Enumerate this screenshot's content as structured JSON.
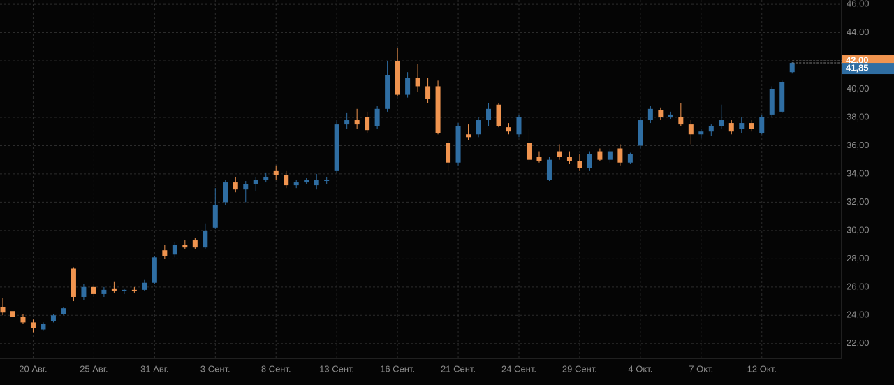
{
  "chart_data": {
    "type": "candlestick",
    "categories": [
      null,
      null,
      null,
      "20 Авг.",
      null,
      null,
      null,
      null,
      null,
      "25 Авг.",
      null,
      null,
      null,
      null,
      null,
      "31 Авг.",
      null,
      null,
      null,
      null,
      null,
      "3 Сент.",
      null,
      null,
      null,
      null,
      null,
      "8 Сент.",
      null,
      null,
      null,
      null,
      null,
      "13 Сент.",
      null,
      null,
      null,
      null,
      null,
      "16 Сент.",
      null,
      null,
      null,
      null,
      null,
      "21 Сент.",
      null,
      null,
      null,
      null,
      null,
      "24 Сент.",
      null,
      null,
      null,
      null,
      null,
      "29 Сент.",
      null,
      null,
      null,
      null,
      null,
      "4 Окт.",
      null,
      null,
      null,
      null,
      null,
      "7 Окт.",
      null,
      null,
      null,
      null,
      null,
      "12 Окт.",
      null,
      null,
      null
    ],
    "open": [
      24.6,
      24.3,
      23.9,
      23.5,
      23.0,
      23.6,
      24.1,
      27.3,
      25.3,
      26.0,
      25.5,
      25.9,
      25.7,
      25.8,
      25.8,
      26.3,
      28.6,
      28.3,
      29.0,
      29.3,
      28.8,
      30.2,
      32.0,
      33.4,
      32.9,
      33.3,
      33.6,
      34.2,
      33.9,
      33.2,
      33.4,
      33.2,
      33.5,
      34.2,
      37.5,
      37.8,
      38.0,
      37.4,
      38.6,
      42.0,
      39.6,
      40.8,
      40.2,
      40.2,
      36.2,
      34.8,
      36.8,
      36.8,
      37.8,
      38.9,
      37.3,
      36.8,
      36.2,
      35.2,
      33.6,
      35.6,
      35.2,
      34.9,
      34.4,
      35.6,
      35.0,
      35.8,
      34.8,
      36.0,
      37.8,
      38.5,
      38.0,
      38.0,
      37.5,
      36.8,
      37.0,
      37.4,
      37.6,
      37.2,
      37.6,
      36.9,
      38.2,
      38.4,
      41.2
    ],
    "high": [
      25.2,
      24.8,
      24.1,
      23.7,
      23.5,
      24.1,
      24.6,
      27.4,
      26.2,
      26.2,
      26.0,
      26.4,
      25.9,
      26.0,
      26.5,
      28.2,
      29.0,
      29.2,
      29.3,
      29.5,
      30.5,
      33.0,
      33.6,
      33.8,
      33.5,
      33.8,
      34.1,
      34.6,
      34.2,
      33.6,
      33.7,
      34.0,
      33.8,
      37.8,
      38.3,
      38.6,
      38.4,
      38.8,
      42.0,
      42.9,
      41.2,
      41.8,
      40.8,
      40.6,
      36.4,
      37.6,
      37.5,
      38.0,
      39.0,
      39.0,
      37.6,
      38.2,
      37.2,
      35.6,
      35.2,
      36.1,
      35.6,
      35.4,
      35.6,
      35.8,
      35.8,
      36.1,
      35.5,
      38.0,
      38.8,
      38.7,
      38.4,
      39.0,
      37.8,
      37.2,
      37.5,
      38.9,
      37.8,
      38.0,
      37.8,
      38.2,
      40.2,
      40.6,
      41.9
    ],
    "low": [
      24.0,
      23.8,
      23.4,
      22.8,
      22.9,
      23.5,
      24.0,
      25.0,
      25.1,
      25.3,
      25.3,
      25.6,
      25.5,
      25.6,
      25.7,
      26.2,
      28.0,
      28.1,
      28.7,
      28.7,
      28.7,
      30.1,
      31.8,
      32.7,
      32.0,
      32.8,
      33.4,
      33.6,
      33.0,
      33.0,
      33.3,
      32.9,
      33.3,
      34.1,
      37.2,
      37.2,
      36.9,
      37.2,
      38.4,
      39.5,
      39.4,
      39.8,
      39.0,
      36.8,
      34.2,
      34.6,
      36.4,
      36.6,
      37.4,
      37.3,
      36.8,
      36.6,
      34.8,
      34.8,
      33.5,
      35.0,
      34.7,
      34.2,
      34.2,
      34.9,
      34.8,
      34.6,
      34.7,
      35.8,
      37.6,
      37.8,
      37.9,
      37.4,
      36.1,
      36.5,
      36.7,
      37.2,
      36.8,
      36.9,
      37.0,
      36.8,
      38.0,
      38.3,
      41.1
    ],
    "close": [
      24.2,
      23.9,
      23.5,
      23.1,
      23.4,
      24.0,
      24.5,
      25.3,
      26.0,
      25.5,
      25.8,
      25.7,
      25.8,
      25.7,
      26.3,
      28.1,
      28.2,
      29.0,
      28.8,
      28.8,
      30.0,
      31.8,
      33.4,
      32.9,
      33.3,
      33.6,
      33.8,
      33.9,
      33.2,
      33.4,
      33.6,
      33.6,
      33.6,
      37.5,
      37.8,
      37.5,
      37.1,
      38.6,
      41.0,
      39.6,
      40.8,
      40.2,
      39.3,
      36.9,
      34.8,
      37.4,
      36.6,
      37.8,
      38.6,
      37.4,
      37.0,
      38.0,
      35.0,
      34.9,
      35.0,
      35.2,
      34.9,
      34.4,
      35.4,
      35.0,
      35.6,
      34.8,
      35.4,
      37.8,
      38.6,
      38.0,
      38.2,
      37.5,
      36.8,
      37.0,
      37.4,
      37.8,
      37.0,
      37.6,
      37.2,
      38.0,
      40.0,
      40.5,
      41.85
    ],
    "up_color": "#2f6ea3",
    "down_color": "#f0944f",
    "ylim": [
      21,
      46.3
    ],
    "yticks": [
      {
        "value": 22,
        "label": "22,00"
      },
      {
        "value": 24,
        "label": "24,00"
      },
      {
        "value": 26,
        "label": "26,00"
      },
      {
        "value": 28,
        "label": "28,00"
      },
      {
        "value": 30,
        "label": "30,00"
      },
      {
        "value": 32,
        "label": "32,00"
      },
      {
        "value": 34,
        "label": "34,00"
      },
      {
        "value": 36,
        "label": "36,00"
      },
      {
        "value": 38,
        "label": "38,00"
      },
      {
        "value": 40,
        "label": "40,00"
      },
      {
        "value": 42,
        "label": "42,00"
      },
      {
        "value": 44,
        "label": "44,00"
      },
      {
        "value": 46,
        "label": "46,00"
      }
    ],
    "grid": true,
    "price_markers": [
      {
        "value": 42,
        "label": "42,00",
        "color": "#f0944f"
      },
      {
        "value": 41.85,
        "label": "41,85",
        "color": "#2f6ea3"
      }
    ]
  }
}
